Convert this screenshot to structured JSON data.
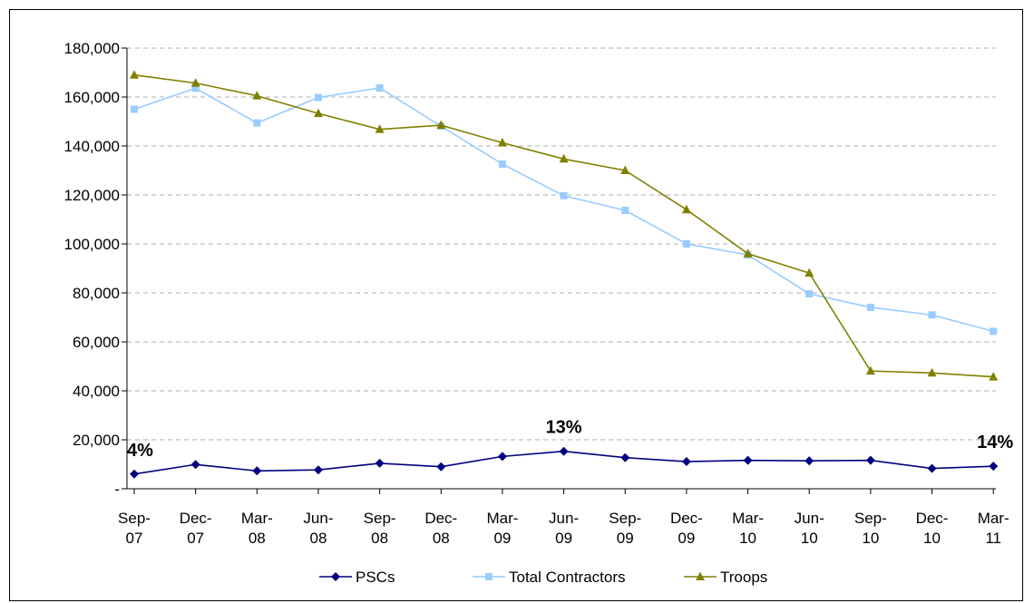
{
  "chart_data": {
    "type": "line",
    "title": "",
    "xlabel": "",
    "ylabel": "",
    "categories": [
      "Sep-07",
      "Dec-07",
      "Mar-08",
      "Jun-08",
      "Sep-08",
      "Dec-08",
      "Mar-09",
      "Jun-09",
      "Sep-09",
      "Dec-09",
      "Mar-10",
      "Jun-10",
      "Sep-10",
      "Dec-10",
      "Mar-11"
    ],
    "ylim": [
      0,
      180000
    ],
    "yticks": [
      "-",
      "20,000",
      "40,000",
      "60,000",
      "80,000",
      "100,000",
      "120,000",
      "140,000",
      "160,000",
      "180,000"
    ],
    "grid": "horizontal dashed",
    "legend_position": "bottom",
    "series": [
      {
        "name": "PSCs",
        "color": "#000080",
        "marker": "diamond",
        "values": [
          6000,
          9900,
          7300,
          7700,
          10400,
          9000,
          13200,
          15300,
          12700,
          11100,
          11600,
          11400,
          11600,
          8300,
          9200
        ]
      },
      {
        "name": "Total Contractors",
        "color": "#99ccff",
        "marker": "square",
        "values": [
          155000,
          163600,
          149400,
          159800,
          163700,
          148100,
          132600,
          119700,
          113700,
          100000,
          95500,
          79600,
          74100,
          71000,
          64300
        ]
      },
      {
        "name": "Troops",
        "color": "#808000",
        "marker": "triangle",
        "values": [
          169000,
          165700,
          160500,
          153300,
          146800,
          148500,
          141300,
          134700,
          130000,
          114000,
          96000,
          88100,
          48100,
          47300,
          45700
        ]
      }
    ],
    "annotations": [
      {
        "text": "4%",
        "category_index": 0
      },
      {
        "text": "13%",
        "category_index": 7
      },
      {
        "text": "14%",
        "category_index": 14
      }
    ]
  }
}
